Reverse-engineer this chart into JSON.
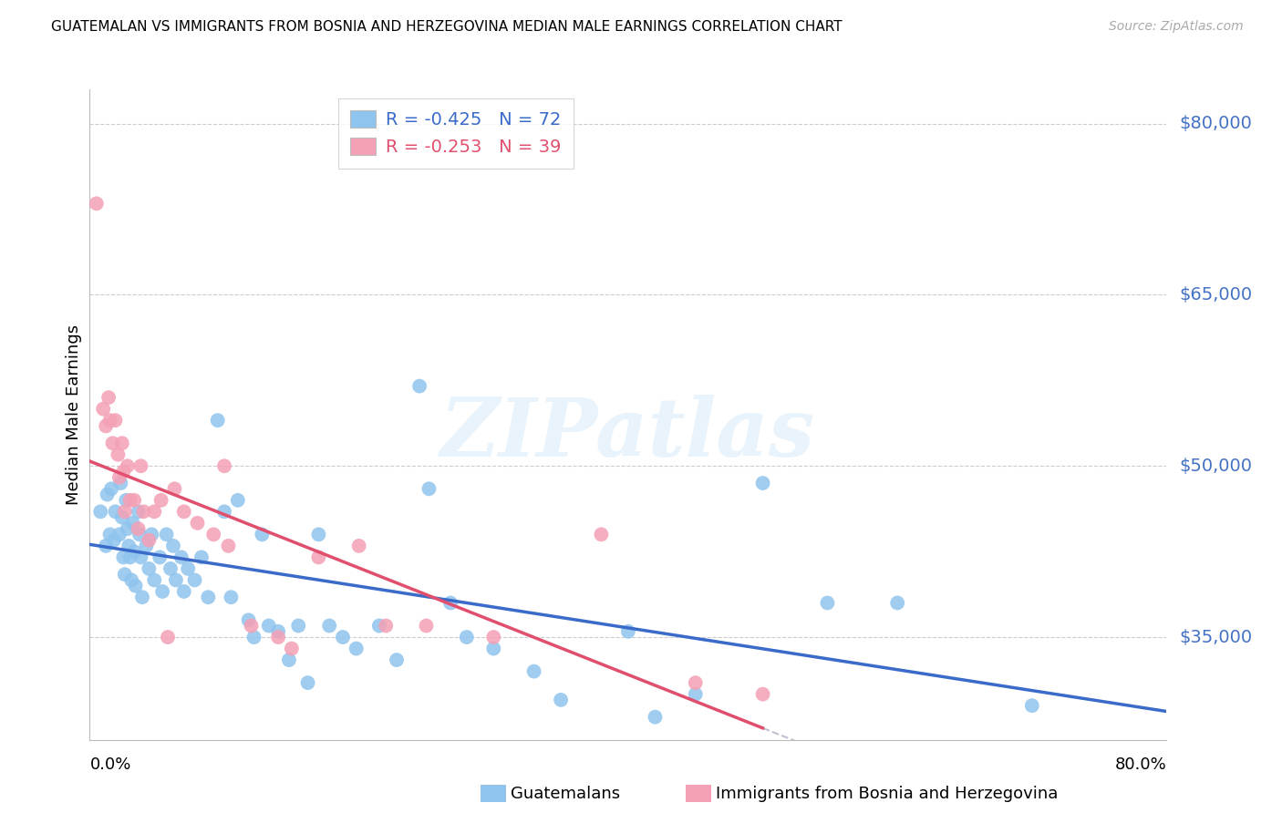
{
  "title": "GUATEMALAN VS IMMIGRANTS FROM BOSNIA AND HERZEGOVINA MEDIAN MALE EARNINGS CORRELATION CHART",
  "source": "Source: ZipAtlas.com",
  "ylabel": "Median Male Earnings",
  "ytick_values": [
    35000,
    50000,
    65000,
    80000
  ],
  "ymin": 26000,
  "ymax": 83000,
  "xmin": 0.0,
  "xmax": 0.8,
  "blue_color": "#8fc4ee",
  "pink_color": "#f4a0b5",
  "blue_line_color": "#3b6bc9",
  "pink_line_color": "#e0506e",
  "dashed_line_color": "#c0c0d0",
  "legend_blue_label": "R = -0.425   N = 72",
  "legend_pink_label": "R = -0.253   N = 39",
  "watermark": "ZIPatlas",
  "footer_blue_label": "Guatemalans",
  "footer_pink_label": "Immigrants from Bosnia and Herzegovina",
  "blue_scatter_x": [
    0.008,
    0.012,
    0.013,
    0.015,
    0.016,
    0.018,
    0.019,
    0.022,
    0.023,
    0.024,
    0.025,
    0.026,
    0.027,
    0.028,
    0.029,
    0.03,
    0.031,
    0.032,
    0.033,
    0.034,
    0.036,
    0.037,
    0.038,
    0.039,
    0.042,
    0.044,
    0.046,
    0.048,
    0.052,
    0.054,
    0.057,
    0.06,
    0.062,
    0.064,
    0.068,
    0.07,
    0.073,
    0.078,
    0.083,
    0.088,
    0.095,
    0.1,
    0.105,
    0.11,
    0.118,
    0.122,
    0.128,
    0.133,
    0.14,
    0.148,
    0.155,
    0.162,
    0.17,
    0.178,
    0.188,
    0.198,
    0.215,
    0.228,
    0.245,
    0.252,
    0.268,
    0.28,
    0.3,
    0.33,
    0.35,
    0.4,
    0.42,
    0.45,
    0.5,
    0.548,
    0.6,
    0.7
  ],
  "blue_scatter_y": [
    46000,
    43000,
    47500,
    44000,
    48000,
    43500,
    46000,
    44000,
    48500,
    45500,
    42000,
    40500,
    47000,
    44500,
    43000,
    42000,
    40000,
    45000,
    42500,
    39500,
    46000,
    44000,
    42000,
    38500,
    43000,
    41000,
    44000,
    40000,
    42000,
    39000,
    44000,
    41000,
    43000,
    40000,
    42000,
    39000,
    41000,
    40000,
    42000,
    38500,
    54000,
    46000,
    38500,
    47000,
    36500,
    35000,
    44000,
    36000,
    35500,
    33000,
    36000,
    31000,
    44000,
    36000,
    35000,
    34000,
    36000,
    33000,
    57000,
    48000,
    38000,
    35000,
    34000,
    32000,
    29500,
    35500,
    28000,
    30000,
    48500,
    38000,
    38000,
    29000
  ],
  "pink_scatter_x": [
    0.005,
    0.01,
    0.012,
    0.014,
    0.015,
    0.017,
    0.019,
    0.021,
    0.022,
    0.024,
    0.025,
    0.026,
    0.028,
    0.03,
    0.033,
    0.036,
    0.038,
    0.04,
    0.044,
    0.048,
    0.053,
    0.058,
    0.063,
    0.07,
    0.08,
    0.092,
    0.1,
    0.103,
    0.12,
    0.14,
    0.15,
    0.17,
    0.2,
    0.22,
    0.25,
    0.3,
    0.38,
    0.45,
    0.5
  ],
  "pink_scatter_y": [
    73000,
    55000,
    53500,
    56000,
    54000,
    52000,
    54000,
    51000,
    49000,
    52000,
    49500,
    46000,
    50000,
    47000,
    47000,
    44500,
    50000,
    46000,
    43500,
    46000,
    47000,
    35000,
    48000,
    46000,
    45000,
    44000,
    50000,
    43000,
    36000,
    35000,
    34000,
    42000,
    43000,
    36000,
    36000,
    35000,
    44000,
    31000,
    30000
  ]
}
